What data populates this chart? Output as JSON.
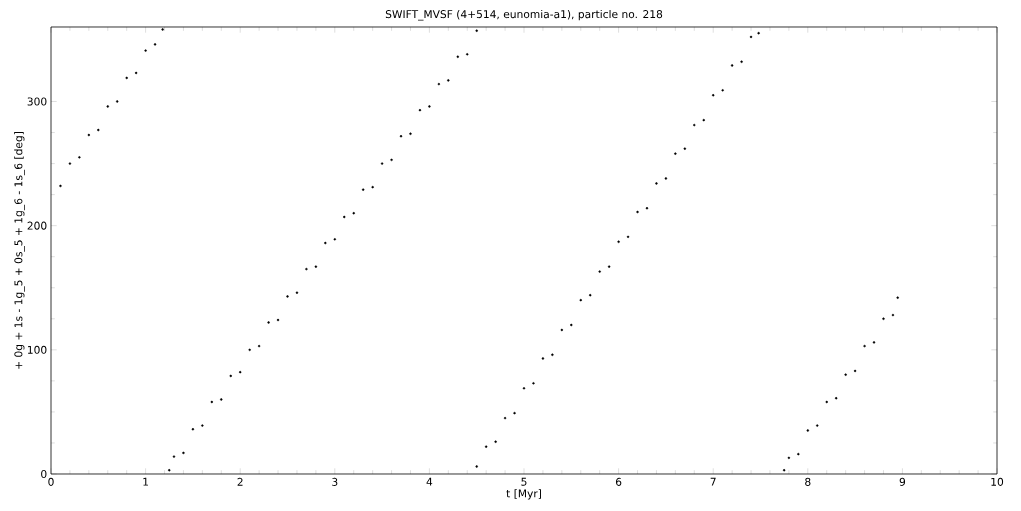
{
  "chart_data": {
    "type": "scatter",
    "title": "SWIFT_MVSF (4+514, eunomia-a1), particle no. 218",
    "xlabel": "t [Myr]",
    "ylabel": "+ 0g + 1s - 1g_5 + 0s_5 + 1g_6 - 1s_6 [deg]",
    "xlim": [
      0,
      10
    ],
    "ylim": [
      0,
      360
    ],
    "xticks": [
      0,
      1,
      2,
      3,
      4,
      5,
      6,
      7,
      8,
      9,
      10
    ],
    "yticks": [
      0,
      100,
      200,
      300
    ],
    "series": [
      {
        "color": "#000000",
        "x": [
          0.1,
          0.2,
          0.3,
          0.4,
          0.5,
          0.6,
          0.7,
          0.8,
          0.9,
          1.0,
          1.1,
          1.18,
          1.25,
          1.3,
          1.4,
          1.5,
          1.6,
          1.7,
          1.8,
          1.9,
          2.0,
          2.1,
          2.2,
          2.3,
          2.4,
          2.5,
          2.6,
          2.7,
          2.8,
          2.9,
          3.0,
          3.1,
          3.2,
          3.3,
          3.4,
          3.5,
          3.6,
          3.7,
          3.8,
          3.9,
          4.0,
          4.1,
          4.2,
          4.3,
          4.4,
          4.5,
          4.5,
          4.6,
          4.7,
          4.8,
          4.9,
          5.0,
          5.1,
          5.2,
          5.3,
          5.4,
          5.5,
          5.6,
          5.7,
          5.8,
          5.9,
          6.0,
          6.1,
          6.2,
          6.3,
          6.4,
          6.5,
          6.6,
          6.7,
          6.8,
          6.9,
          7.0,
          7.1,
          7.2,
          7.3,
          7.4,
          7.48,
          7.75,
          7.8,
          7.9,
          8.0,
          8.1,
          8.2,
          8.3,
          8.4,
          8.5,
          8.6,
          8.7,
          8.8,
          8.9,
          8.95
        ],
        "values": [
          232,
          250,
          255,
          273,
          277,
          296,
          300,
          319,
          323,
          341,
          346,
          358,
          3,
          14,
          17,
          36,
          39,
          58,
          60,
          79,
          82,
          100,
          103,
          122,
          124,
          143,
          146,
          165,
          167,
          186,
          189,
          207,
          210,
          229,
          231,
          250,
          253,
          272,
          274,
          293,
          296,
          314,
          317,
          336,
          338,
          357,
          6,
          22,
          26,
          45,
          49,
          69,
          73,
          93,
          96,
          116,
          120,
          140,
          144,
          163,
          167,
          187,
          191,
          211,
          214,
          234,
          238,
          258,
          262,
          281,
          285,
          305,
          309,
          329,
          332,
          352,
          355,
          3,
          13,
          16,
          35,
          39,
          58,
          61,
          80,
          83,
          103,
          106,
          125,
          128,
          142
        ]
      }
    ]
  }
}
